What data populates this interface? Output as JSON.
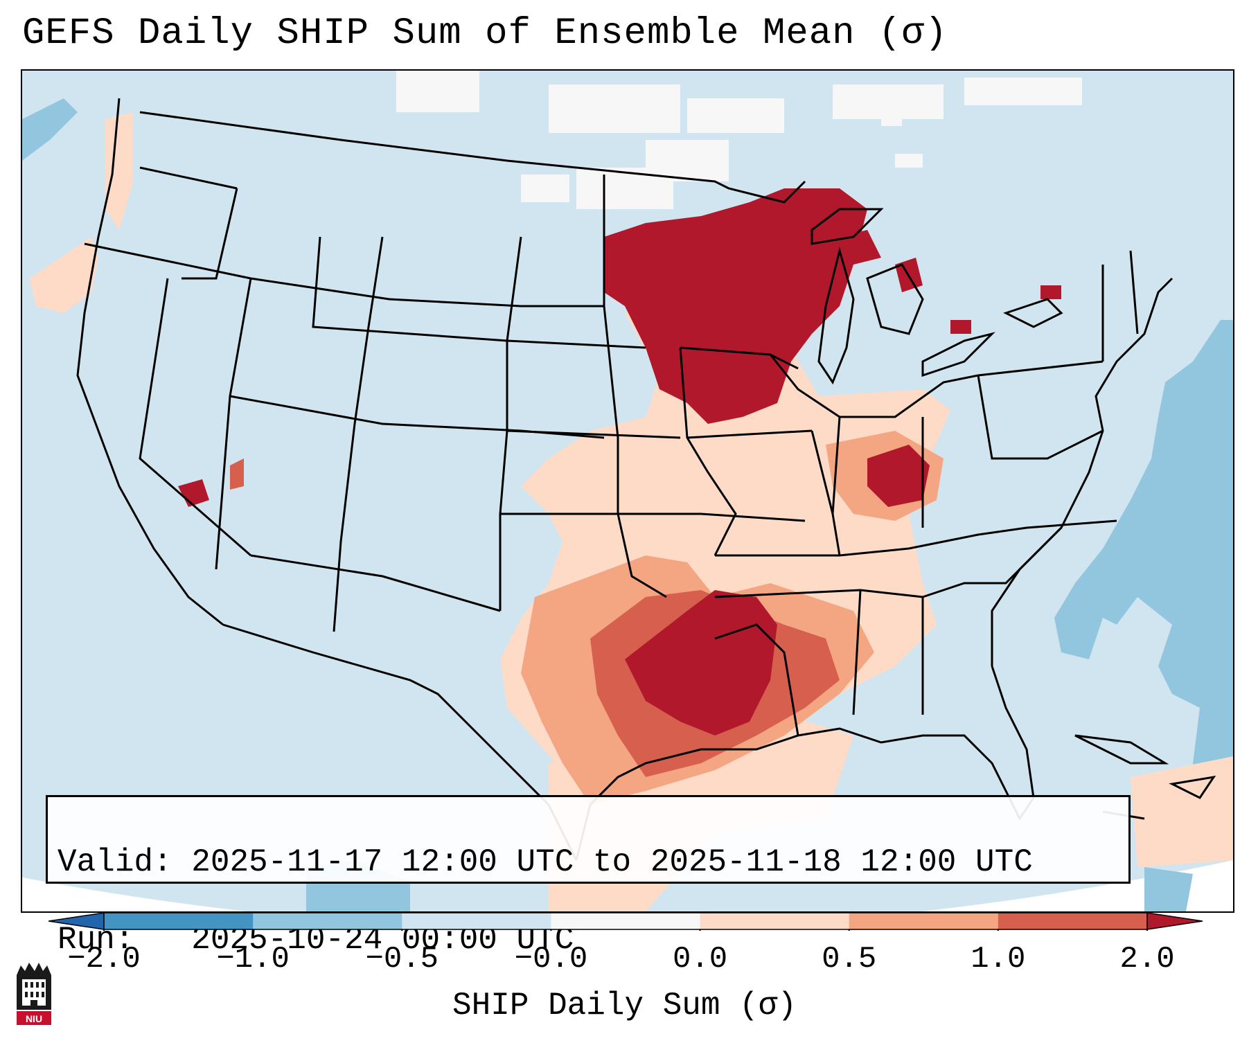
{
  "header": {
    "title": "GEFS Daily SHIP Sum of Ensemble Mean (σ)"
  },
  "info": {
    "valid_line": "Valid: 2025-11-17 12:00 UTC to 2025-11-18 12:00 UTC",
    "run_line": "Run:   2025-10-24 00:00 UTC"
  },
  "colorbar": {
    "label": "SHIP Daily Sum (σ)",
    "ticks": [
      "−2.0",
      "−1.0",
      "−0.5",
      "−0.0",
      "0.0",
      "0.5",
      "1.0",
      "2.0"
    ],
    "colors": [
      "#4393c3",
      "#92c5de",
      "#d1e5f0",
      "#f7f7f7",
      "#fddbc7",
      "#f4a582",
      "#d6604d"
    ],
    "extend_low_color": "#2166ac",
    "extend_high_color": "#b2182b"
  },
  "logo": {
    "text": "NIU"
  },
  "map": {
    "background_color": "#d1e5f0",
    "region": "Contiguous United States"
  }
}
